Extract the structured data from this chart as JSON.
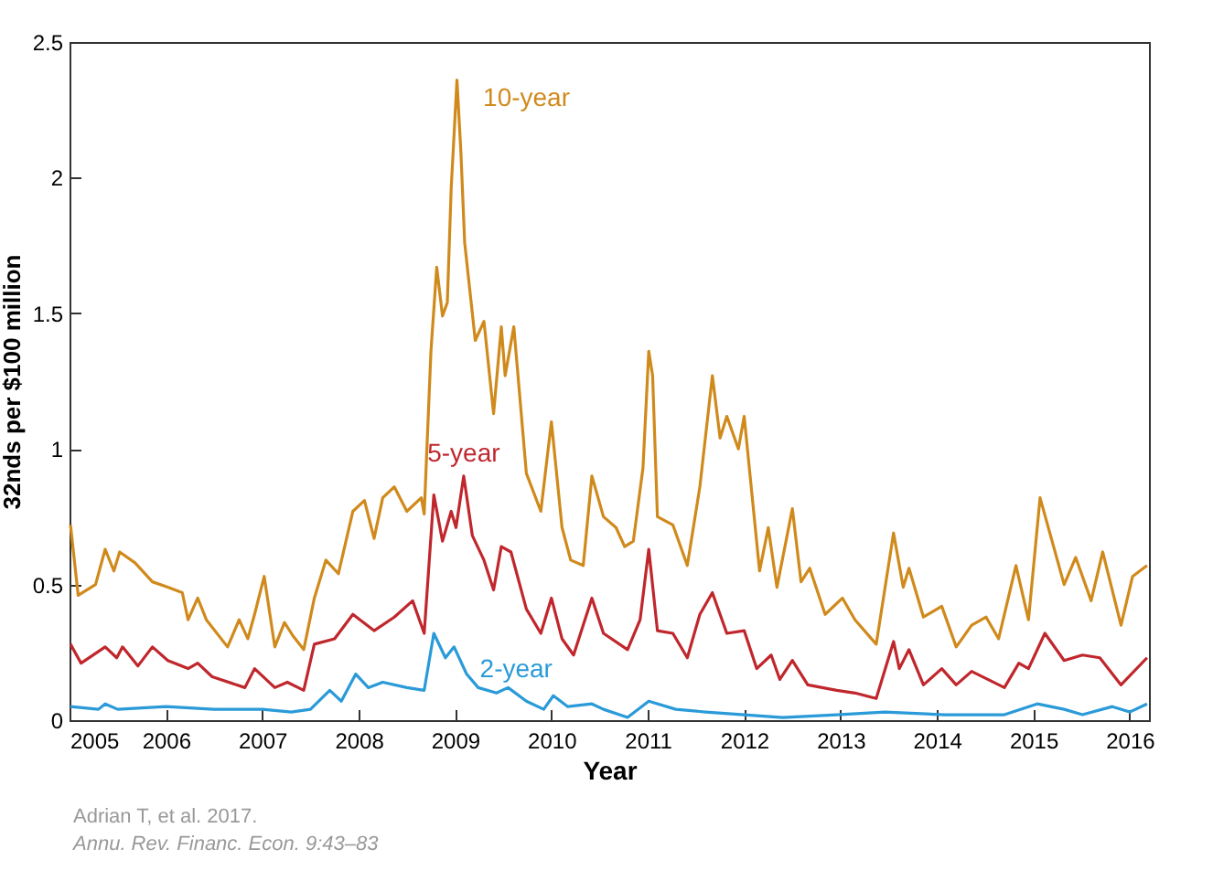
{
  "chart_data": {
    "type": "line",
    "xlabel": "Year",
    "ylabel": "32nds per $100 million",
    "xlim": [
      2005,
      2016.2
    ],
    "xticks": [
      2005,
      2006,
      2007,
      2008,
      2009,
      2010,
      2011,
      2012,
      2013,
      2014,
      2015,
      2016
    ],
    "ylim": [
      0,
      2.5
    ],
    "yticks": [
      0,
      0.5,
      1,
      1.5,
      2,
      2.5
    ],
    "grid": false,
    "annotations": [
      "Adrian T, et al. 2017.",
      "Annu. Rev. Financ. Econ. 9:43–83"
    ],
    "series": [
      {
        "name": "10-year",
        "color": "#d08a1c",
        "x": [
          2005.01,
          2005.09,
          2005.27,
          2005.37,
          2005.46,
          2005.52,
          2005.68,
          2005.86,
          2006.02,
          2006.17,
          2006.23,
          2006.33,
          2006.42,
          2006.64,
          2006.76,
          2006.85,
          2006.92,
          2007.02,
          2007.13,
          2007.23,
          2007.32,
          2007.43,
          2007.54,
          2007.66,
          2007.79,
          2007.94,
          2008.06,
          2008.16,
          2008.25,
          2008.37,
          2008.5,
          2008.65,
          2008.68,
          2008.75,
          2008.81,
          2008.87,
          2008.92,
          2008.96,
          2009.02,
          2009.06,
          2009.1,
          2009.21,
          2009.3,
          2009.4,
          2009.48,
          2009.52,
          2009.61,
          2009.74,
          2009.89,
          2010.0,
          2010.11,
          2010.2,
          2010.33,
          2010.42,
          2010.54,
          2010.67,
          2010.76,
          2010.85,
          2010.95,
          2011.01,
          2011.05,
          2011.1,
          2011.26,
          2011.41,
          2011.54,
          2011.67,
          2011.75,
          2011.82,
          2011.94,
          2012.0,
          2012.16,
          2012.25,
          2012.34,
          2012.5,
          2012.59,
          2012.68,
          2012.84,
          2013.02,
          2013.15,
          2013.37,
          2013.55,
          2013.65,
          2013.71,
          2013.86,
          2014.05,
          2014.2,
          2014.36,
          2014.51,
          2014.64,
          2014.82,
          2014.95,
          2015.07,
          2015.32,
          2015.44,
          2015.6,
          2015.72,
          2015.91,
          2016.03,
          2016.18
        ],
        "values": [
          0.72,
          0.46,
          0.5,
          0.63,
          0.55,
          0.62,
          0.58,
          0.51,
          0.49,
          0.47,
          0.37,
          0.45,
          0.37,
          0.27,
          0.37,
          0.3,
          0.39,
          0.53,
          0.27,
          0.36,
          0.31,
          0.26,
          0.45,
          0.59,
          0.54,
          0.77,
          0.81,
          0.67,
          0.82,
          0.86,
          0.77,
          0.82,
          0.76,
          1.36,
          1.67,
          1.49,
          1.54,
          1.96,
          2.36,
          2.1,
          1.76,
          1.4,
          1.47,
          1.13,
          1.45,
          1.27,
          1.45,
          0.91,
          0.77,
          1.1,
          0.71,
          0.59,
          0.57,
          0.9,
          0.75,
          0.71,
          0.64,
          0.66,
          0.93,
          1.36,
          1.27,
          0.75,
          0.72,
          0.57,
          0.86,
          1.27,
          1.04,
          1.12,
          1.0,
          1.12,
          0.55,
          0.71,
          0.49,
          0.78,
          0.51,
          0.56,
          0.39,
          0.45,
          0.37,
          0.28,
          0.69,
          0.49,
          0.56,
          0.38,
          0.42,
          0.27,
          0.35,
          0.38,
          0.3,
          0.57,
          0.37,
          0.82,
          0.5,
          0.6,
          0.44,
          0.62,
          0.35,
          0.53,
          0.57
        ]
      },
      {
        "name": "5-year",
        "color": "#c0272d",
        "x": [
          2005.01,
          2005.12,
          2005.37,
          2005.49,
          2005.55,
          2005.71,
          2005.86,
          2006.02,
          2006.23,
          2006.33,
          2006.48,
          2006.82,
          2006.92,
          2007.13,
          2007.26,
          2007.43,
          2007.54,
          2007.75,
          2007.94,
          2008.16,
          2008.37,
          2008.56,
          2008.68,
          2008.78,
          2008.87,
          2008.96,
          2009.01,
          2009.09,
          2009.18,
          2009.3,
          2009.4,
          2009.48,
          2009.58,
          2009.74,
          2009.89,
          2010.0,
          2010.11,
          2010.23,
          2010.42,
          2010.54,
          2010.79,
          2010.92,
          2011.01,
          2011.1,
          2011.26,
          2011.41,
          2011.54,
          2011.67,
          2011.82,
          2012.0,
          2012.13,
          2012.28,
          2012.37,
          2012.5,
          2012.66,
          2012.96,
          2013.15,
          2013.37,
          2013.55,
          2013.61,
          2013.71,
          2013.86,
          2014.05,
          2014.2,
          2014.36,
          2014.7,
          2014.85,
          2014.95,
          2015.12,
          2015.32,
          2015.51,
          2015.69,
          2015.91,
          2016.18
        ],
        "values": [
          0.28,
          0.21,
          0.27,
          0.23,
          0.27,
          0.2,
          0.27,
          0.22,
          0.19,
          0.21,
          0.16,
          0.12,
          0.19,
          0.12,
          0.14,
          0.11,
          0.28,
          0.3,
          0.39,
          0.33,
          0.38,
          0.44,
          0.32,
          0.83,
          0.66,
          0.77,
          0.71,
          0.9,
          0.68,
          0.59,
          0.48,
          0.64,
          0.62,
          0.41,
          0.32,
          0.45,
          0.3,
          0.24,
          0.45,
          0.32,
          0.26,
          0.37,
          0.63,
          0.33,
          0.32,
          0.23,
          0.39,
          0.47,
          0.32,
          0.33,
          0.19,
          0.24,
          0.15,
          0.22,
          0.13,
          0.11,
          0.1,
          0.08,
          0.29,
          0.19,
          0.26,
          0.13,
          0.19,
          0.13,
          0.18,
          0.12,
          0.21,
          0.19,
          0.32,
          0.22,
          0.24,
          0.23,
          0.13,
          0.23
        ]
      },
      {
        "name": "2-year",
        "color": "#2a9ad8",
        "x": [
          2005.01,
          2005.3,
          2005.37,
          2005.5,
          2006.0,
          2006.5,
          2007.0,
          2007.3,
          2007.5,
          2007.7,
          2007.82,
          2007.97,
          2008.1,
          2008.25,
          2008.5,
          2008.68,
          2008.78,
          2008.9,
          2008.99,
          2009.12,
          2009.24,
          2009.43,
          2009.55,
          2009.74,
          2009.92,
          2010.02,
          2010.17,
          2010.42,
          2010.54,
          2010.79,
          2011.01,
          2011.29,
          2011.6,
          2012.0,
          2012.4,
          2012.96,
          2013.46,
          2014.08,
          2014.7,
          2015.04,
          2015.32,
          2015.51,
          2015.82,
          2016.0,
          2016.18
        ],
        "values": [
          0.05,
          0.04,
          0.06,
          0.04,
          0.05,
          0.04,
          0.04,
          0.03,
          0.04,
          0.11,
          0.07,
          0.17,
          0.12,
          0.14,
          0.12,
          0.11,
          0.32,
          0.23,
          0.27,
          0.17,
          0.12,
          0.1,
          0.12,
          0.07,
          0.04,
          0.09,
          0.05,
          0.06,
          0.04,
          0.01,
          0.07,
          0.04,
          0.03,
          0.02,
          0.01,
          0.02,
          0.03,
          0.02,
          0.02,
          0.06,
          0.04,
          0.02,
          0.05,
          0.03,
          0.06
        ]
      }
    ]
  }
}
